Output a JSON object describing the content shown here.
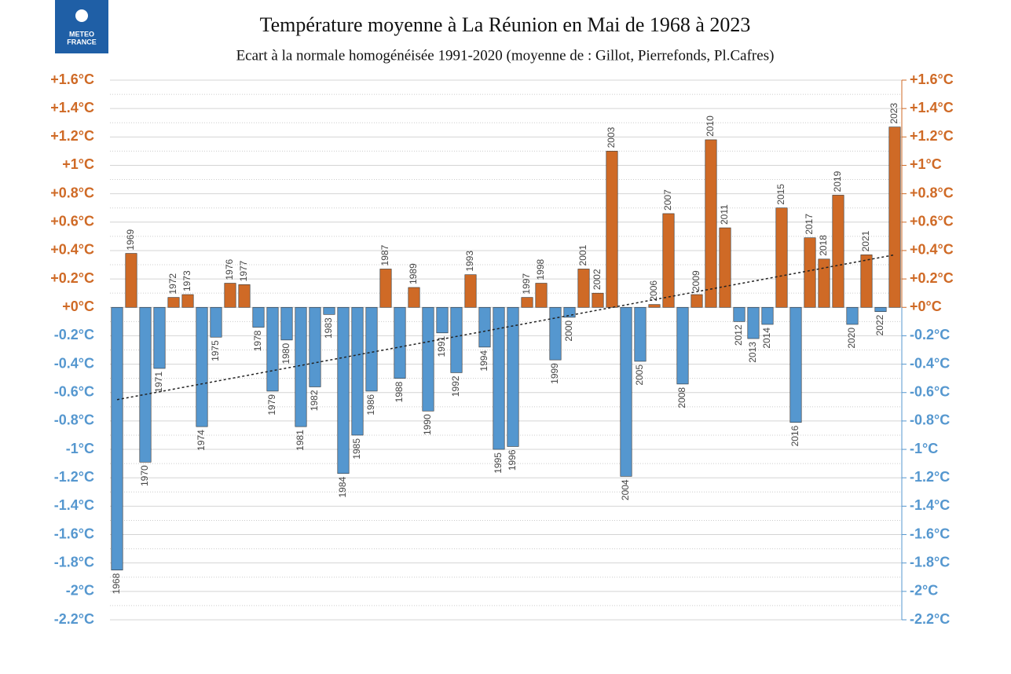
{
  "logo": {
    "line1": "METEO",
    "line2": "FRANCE"
  },
  "chart_data": {
    "type": "bar",
    "title": "Température moyenne à La Réunion en Mai de 1968 à 2023",
    "subtitle": "Ecart à la normale homogénéisée 1991-2020 (moyenne de : Gillot, Pierrefonds, Pl.Cafres)",
    "categories": [
      "1968",
      "1969",
      "1970",
      "1971",
      "1972",
      "1973",
      "1974",
      "1975",
      "1976",
      "1977",
      "1978",
      "1979",
      "1980",
      "1981",
      "1982",
      "1983",
      "1984",
      "1985",
      "1986",
      "1987",
      "1988",
      "1989",
      "1990",
      "1991",
      "1992",
      "1993",
      "1994",
      "1995",
      "1996",
      "1997",
      "1998",
      "1999",
      "2000",
      "2001",
      "2002",
      "2003",
      "2004",
      "2005",
      "2006",
      "2007",
      "2008",
      "2009",
      "2010",
      "2011",
      "2012",
      "2013",
      "2014",
      "2015",
      "2016",
      "2017",
      "2018",
      "2019",
      "2020",
      "2021",
      "2022",
      "2023"
    ],
    "values": [
      -1.85,
      0.38,
      -1.09,
      -0.43,
      0.07,
      0.09,
      -0.84,
      -0.21,
      0.17,
      0.16,
      -0.14,
      -0.59,
      -0.23,
      -0.84,
      -0.56,
      -0.05,
      -1.17,
      -0.9,
      -0.59,
      0.27,
      -0.5,
      0.14,
      -0.73,
      -0.18,
      -0.46,
      0.23,
      -0.28,
      -1.0,
      -0.98,
      0.07,
      0.17,
      -0.37,
      -0.07,
      0.27,
      0.1,
      1.1,
      -1.19,
      -0.38,
      0.02,
      0.66,
      -0.54,
      0.09,
      1.18,
      0.56,
      -0.1,
      -0.22,
      -0.12,
      0.7,
      -0.81,
      0.49,
      0.34,
      0.79,
      -0.12,
      0.37,
      -0.03,
      1.27
    ],
    "positive_color": "#cf6a26",
    "negative_color": "#5597cf",
    "trend": {
      "values": [
        -0.65,
        0.37
      ],
      "color": "#222"
    },
    "ylim": [
      -2.2,
      1.6
    ],
    "yticks": [
      {
        "value": 1.6,
        "label": "+1.6°C"
      },
      {
        "value": 1.4,
        "label": "+1.4°C"
      },
      {
        "value": 1.2,
        "label": "+1.2°C"
      },
      {
        "value": 1,
        "label": "+1°C"
      },
      {
        "value": 0.8,
        "label": "+0.8°C"
      },
      {
        "value": 0.6,
        "label": "+0.6°C"
      },
      {
        "value": 0.4,
        "label": "+0.4°C"
      },
      {
        "value": 0.2,
        "label": "+0.2°C"
      },
      {
        "value": 0,
        "label": "+0°C"
      },
      {
        "value": -0.2,
        "label": "-0.2°C"
      },
      {
        "value": -0.4,
        "label": "-0.4°C"
      },
      {
        "value": -0.6,
        "label": "-0.6°C"
      },
      {
        "value": -0.8,
        "label": "-0.8°C"
      },
      {
        "value": -1,
        "label": "-1°C"
      },
      {
        "value": -1.2,
        "label": "-1.2°C"
      },
      {
        "value": -1.4,
        "label": "-1.4°C"
      },
      {
        "value": -1.6,
        "label": "-1.6°C"
      },
      {
        "value": -1.8,
        "label": "-1.8°C"
      },
      {
        "value": -2,
        "label": "-2°C"
      },
      {
        "value": -2.2,
        "label": "-2.2°C"
      }
    ],
    "grid": true
  }
}
